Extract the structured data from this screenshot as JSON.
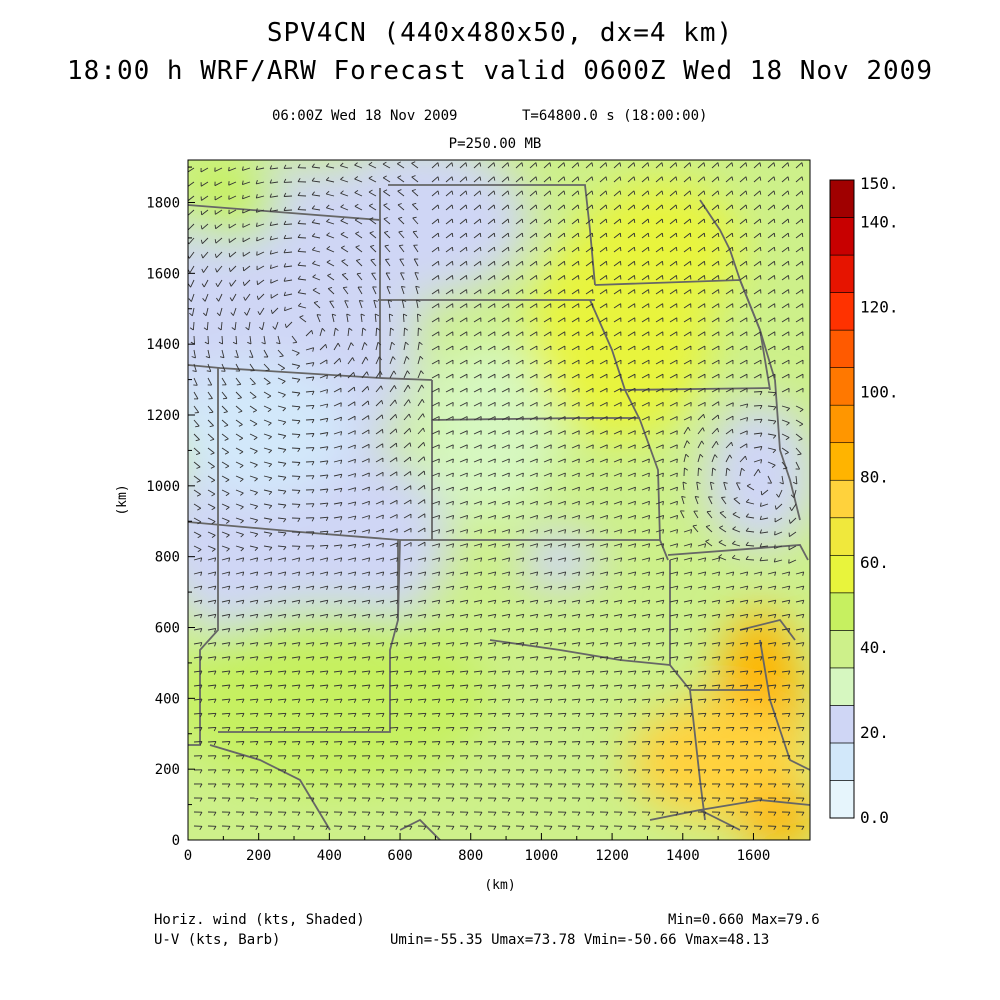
{
  "header": {
    "title_line1": "SPV4CN (440x480x50, dx=4 km)",
    "title_line2": "18:00 h WRF/ARW Forecast valid 0600Z Wed 18 Nov 2009",
    "valid_time": "06:00Z Wed 18 Nov 2009",
    "time_seconds": "T=64800.0 s (18:00:00)",
    "level": "P=250.00 MB"
  },
  "axes": {
    "x_label": "(km)",
    "y_label": "(km)",
    "x_ticks": [
      "0",
      "200",
      "400",
      "600",
      "800",
      "1000",
      "1200",
      "1400",
      "1600"
    ],
    "y_ticks": [
      "0",
      "200",
      "400",
      "600",
      "800",
      "1000",
      "1200",
      "1400",
      "1600",
      "1800"
    ]
  },
  "colorbar": {
    "labels": [
      "0.0",
      "20.",
      "40.",
      "60.",
      "80.",
      "100.",
      "120.",
      "140.",
      "150."
    ],
    "colors": [
      "#e6f5fc",
      "#d2e8fa",
      "#cfd6f5",
      "#d6f7c0",
      "#cdf08a",
      "#c6f060",
      "#e8f43c",
      "#f0e83c",
      "#ffd23c",
      "#ffb400",
      "#ff9600",
      "#ff7800",
      "#ff5a00",
      "#ff3200",
      "#e61400",
      "#c80000",
      "#a00000"
    ]
  },
  "footer": {
    "left_line1": "Horiz. wind (kts, Shaded)",
    "left_line2": "U-V (kts, Barb)",
    "minmax": "Min=0.660 Max=79.6",
    "uv_stats": "Umin=-55.35 Umax=73.78 Vmin=-50.66 Vmax=48.13"
  },
  "chart_data": {
    "type": "heatmap",
    "title": "SPV4CN (440x480x50, dx=4 km)",
    "subtitle": "18:00 h WRF/ARW Forecast valid 0600Z Wed 18 Nov 2009",
    "xlabel": "(km)",
    "ylabel": "(km)",
    "xlim": [
      0,
      1760
    ],
    "ylim": [
      0,
      1920
    ],
    "field": "Horiz. wind (kts, Shaded)",
    "overlay": "U-V (kts, Barb)",
    "min": 0.66,
    "max": 79.6,
    "umin": -55.35,
    "umax": 73.78,
    "vmin": -50.66,
    "vmax": 48.13,
    "scale_range": [
      0,
      150
    ],
    "grid": false,
    "legend": "right"
  }
}
